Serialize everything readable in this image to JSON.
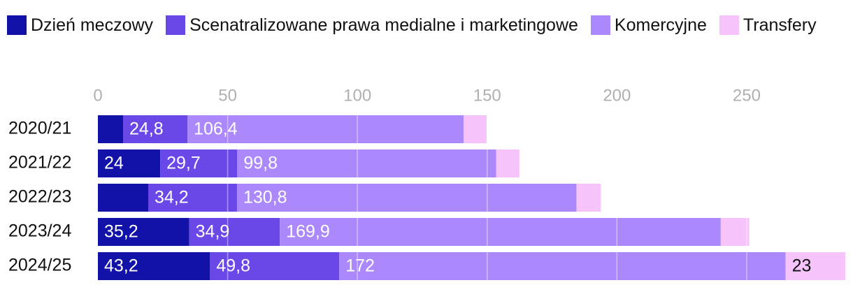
{
  "chart_data": {
    "type": "stacked-bar-horizontal",
    "categories": [
      "2020/21",
      "2021/22",
      "2022/23",
      "2023/24",
      "2024/25"
    ],
    "series": [
      {
        "name": "Dzień meczowy",
        "color": "#1212a8",
        "values": [
          9.7,
          24,
          19.4,
          35.2,
          43.2
        ],
        "value_labels": [
          null,
          "24",
          null,
          "35,2",
          "43,2"
        ]
      },
      {
        "name": "Scenatralizowane prawa medialne i marketingowe",
        "color": "#6a48e8",
        "values": [
          24.8,
          29.7,
          34.2,
          34.9,
          49.8
        ],
        "value_labels": [
          "24,8",
          "29,7",
          "34,2",
          "34,9",
          "49,8"
        ]
      },
      {
        "name": "Komercyjne",
        "color": "#ab88fc",
        "values": [
          106.4,
          99.8,
          130.8,
          169.9,
          172
        ],
        "value_labels": [
          "106,4",
          "99,8",
          "130,8",
          "169,9",
          "172"
        ]
      },
      {
        "name": "Transfery",
        "color": "#f6c4fb",
        "values": [
          8.9,
          8.9,
          9.4,
          11,
          23
        ],
        "value_labels": [
          null,
          null,
          null,
          null,
          "23"
        ]
      }
    ],
    "xlim": [
      0,
      288
    ],
    "xticks": [
      0,
      50,
      100,
      150,
      200,
      250
    ],
    "grid": true
  }
}
